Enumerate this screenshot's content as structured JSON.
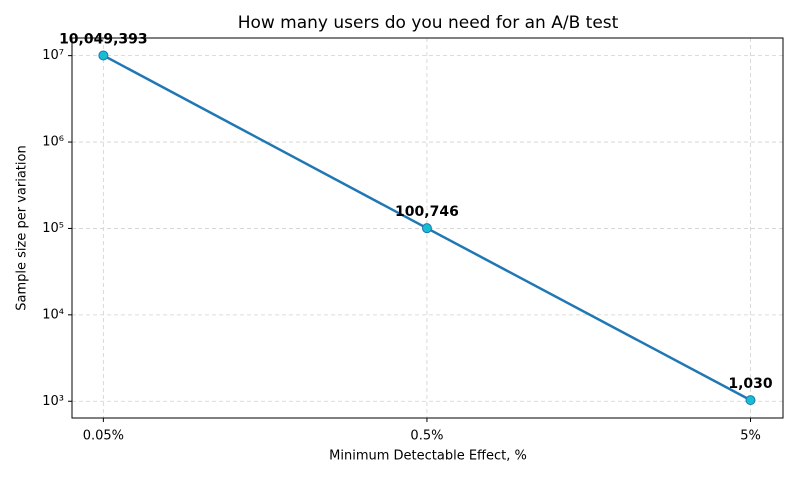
{
  "chart_data": {
    "type": "line",
    "title": "How many users do you need for an A/B test",
    "xlabel": "Minimum Detectable Effect, %",
    "ylabel": "Sample size per variation",
    "x": [
      0.05,
      0.5,
      5
    ],
    "values": [
      10049393,
      100746,
      1030
    ],
    "value_labels": [
      "10,049,393",
      "100,746",
      "1,030"
    ],
    "color": "#1f77b4",
    "marker_color": "#17becf",
    "xscale": "log",
    "yscale": "log",
    "xlim": [
      0.04,
      6.3
    ],
    "ylim": [
      640,
      16000000
    ],
    "xticks": [
      {
        "value": 0.05,
        "label": "0.05%"
      },
      {
        "value": 0.5,
        "label": "0.5%"
      },
      {
        "value": 5,
        "label": "5%"
      }
    ],
    "yticks": [
      {
        "value": 1000,
        "label": "10³"
      },
      {
        "value": 10000,
        "label": "10⁴"
      },
      {
        "value": 100000,
        "label": "10⁵"
      },
      {
        "value": 1000000,
        "label": "10⁶"
      },
      {
        "value": 10000000,
        "label": "10⁷"
      }
    ],
    "grid": true
  }
}
